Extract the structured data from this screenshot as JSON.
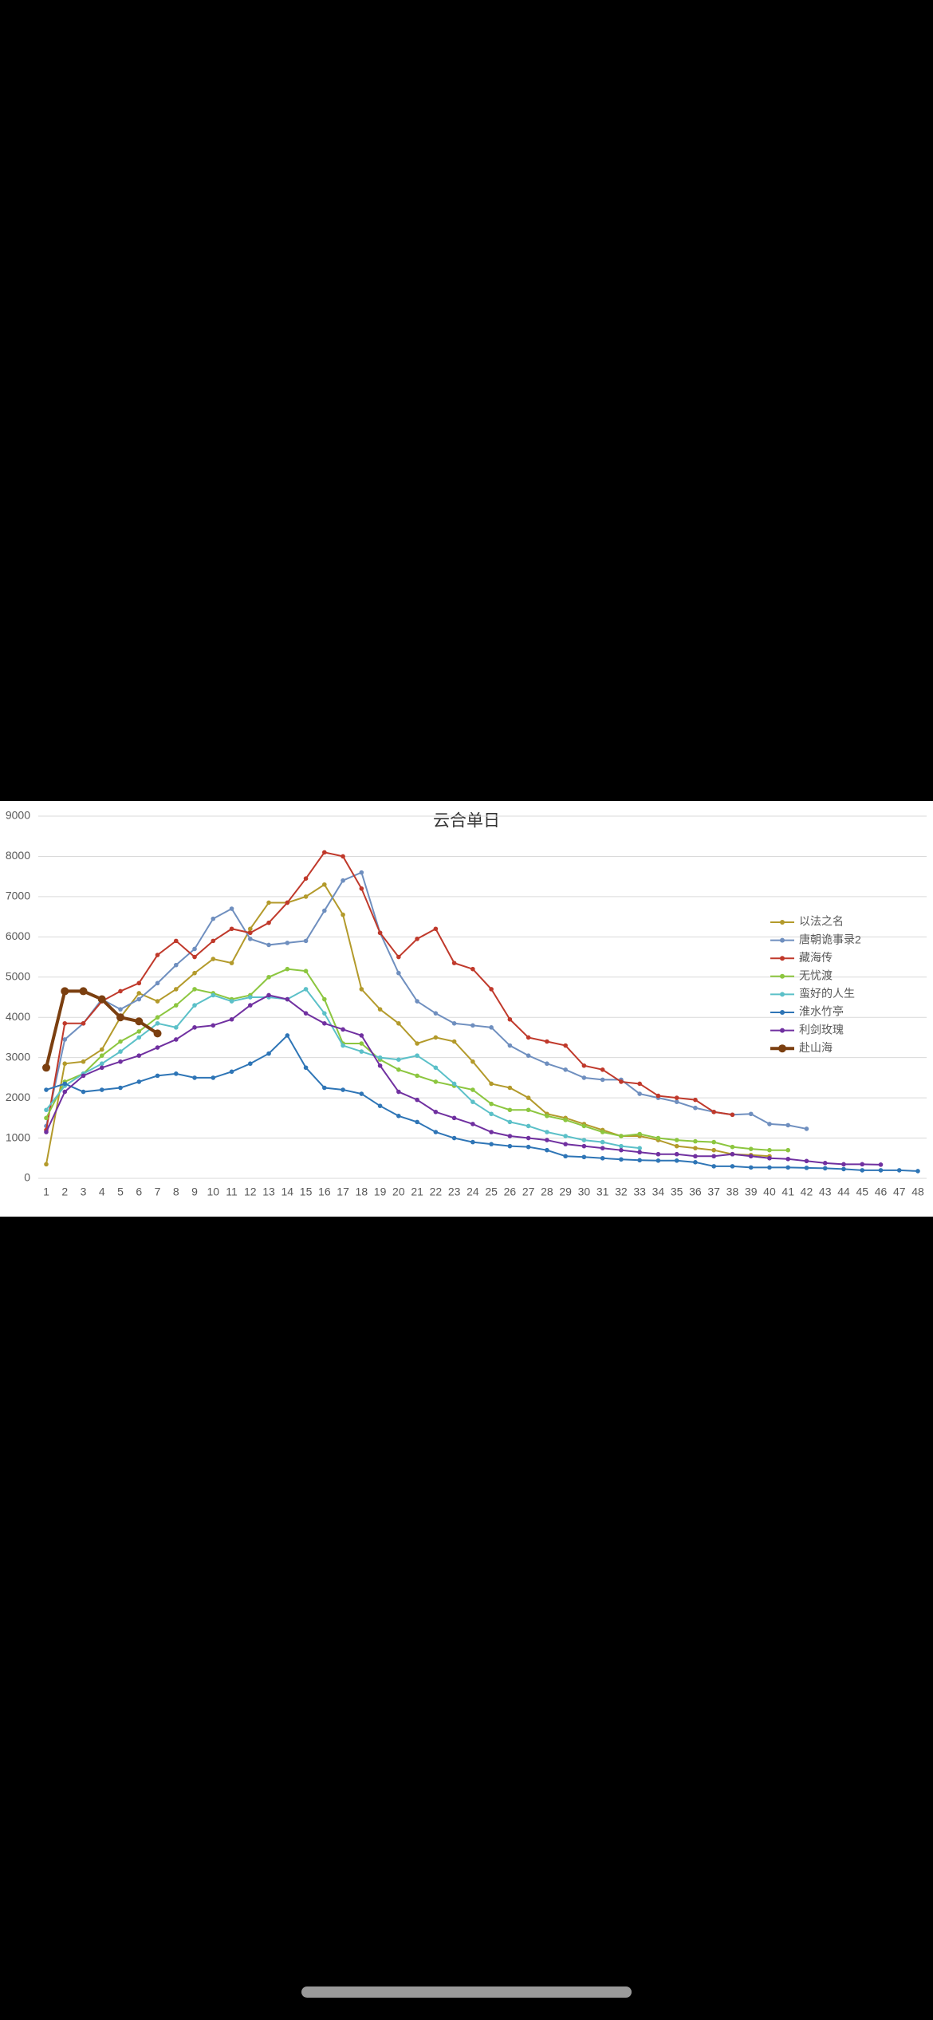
{
  "chart_data": {
    "type": "line",
    "title": "云合单日",
    "categories": [
      1,
      2,
      3,
      4,
      5,
      6,
      7,
      8,
      9,
      10,
      11,
      12,
      13,
      14,
      15,
      16,
      17,
      18,
      19,
      20,
      21,
      22,
      23,
      24,
      25,
      26,
      27,
      28,
      29,
      30,
      31,
      32,
      33,
      34,
      35,
      36,
      37,
      38,
      39,
      40,
      41,
      42,
      43,
      44,
      45,
      46,
      47,
      48
    ],
    "ylim": [
      0,
      9000
    ],
    "yticks": [
      0,
      1000,
      2000,
      3000,
      4000,
      5000,
      6000,
      7000,
      8000,
      9000
    ],
    "grid": true,
    "legend": "right",
    "series": [
      {
        "name": "以法之名",
        "color": "#b39a2b",
        "values": [
          350,
          2850,
          2900,
          3200,
          4000,
          4600,
          4400,
          4700,
          5100,
          5450,
          5350,
          6200,
          6850,
          6850,
          7000,
          7300,
          6550,
          4700,
          4200,
          3850,
          3350,
          3500,
          3400,
          2900,
          2350,
          2250,
          2000,
          1600,
          1500,
          1350,
          1200,
          1050,
          1050,
          950,
          800,
          750,
          700,
          600,
          580,
          550,
          null,
          null,
          null,
          null,
          null,
          null,
          null,
          null
        ]
      },
      {
        "name": "唐朝诡事录2",
        "color": "#6f8fbf",
        "values": [
          1300,
          3450,
          3850,
          4450,
          4200,
          4450,
          4850,
          5300,
          5700,
          6450,
          6700,
          5950,
          5800,
          5850,
          5900,
          6650,
          7400,
          7600,
          6100,
          5100,
          4400,
          4100,
          3850,
          3800,
          3750,
          3300,
          3050,
          2850,
          2700,
          2500,
          2450,
          2450,
          2100,
          2000,
          1900,
          1750,
          1650,
          1580,
          1600,
          1350,
          1320,
          1230,
          null,
          null,
          null,
          null,
          null,
          null
        ]
      },
      {
        "name": "藏海传",
        "color": "#c0392b",
        "values": [
          1200,
          3850,
          3850,
          4400,
          4650,
          4850,
          5550,
          5900,
          5500,
          5900,
          6200,
          6100,
          6350,
          6850,
          7450,
          8100,
          8000,
          7200,
          6100,
          5500,
          5950,
          6200,
          5350,
          5200,
          4700,
          3950,
          3500,
          3400,
          3300,
          2800,
          2700,
          2400,
          2350,
          2050,
          2000,
          1950,
          1650,
          1580,
          null,
          null,
          null,
          null,
          null,
          null,
          null,
          null,
          null,
          null
        ]
      },
      {
        "name": "无忧渡",
        "color": "#8cc63f",
        "values": [
          1500,
          2400,
          2600,
          3050,
          3400,
          3650,
          4000,
          4300,
          4700,
          4600,
          4450,
          4550,
          5000,
          5200,
          5150,
          4450,
          3350,
          3350,
          2950,
          2700,
          2550,
          2400,
          2300,
          2200,
          1850,
          1700,
          1700,
          1550,
          1450,
          1300,
          1150,
          1050,
          1100,
          1000,
          950,
          920,
          900,
          780,
          730,
          700,
          700,
          null,
          null,
          null,
          null,
          null,
          null,
          null
        ]
      },
      {
        "name": "蛮好的人生",
        "color": "#5bc0c8",
        "values": [
          1700,
          2300,
          2600,
          2850,
          3150,
          3500,
          3850,
          3750,
          4300,
          4550,
          4400,
          4500,
          4500,
          4450,
          4700,
          4100,
          3300,
          3150,
          3000,
          2950,
          3050,
          2750,
          2350,
          1900,
          1600,
          1400,
          1300,
          1150,
          1050,
          950,
          900,
          800,
          750,
          null,
          null,
          null,
          null,
          null,
          null,
          null,
          null,
          null,
          null,
          null,
          null,
          null,
          null,
          null
        ]
      },
      {
        "name": "淮水竹亭",
        "color": "#2e75b6",
        "values": [
          2200,
          2350,
          2150,
          2200,
          2250,
          2400,
          2550,
          2600,
          2500,
          2500,
          2650,
          2850,
          3100,
          3550,
          2750,
          2250,
          2200,
          2100,
          1800,
          1550,
          1400,
          1150,
          1000,
          900,
          850,
          800,
          780,
          700,
          550,
          530,
          500,
          470,
          450,
          440,
          440,
          400,
          300,
          300,
          270,
          270,
          270,
          260,
          250,
          230,
          200,
          200,
          200,
          180
        ]
      },
      {
        "name": "利剑玫瑰",
        "color": "#7030a0",
        "values": [
          1150,
          2150,
          2550,
          2750,
          2900,
          3050,
          3250,
          3450,
          3750,
          3800,
          3950,
          4300,
          4550,
          4450,
          4100,
          3850,
          3700,
          3550,
          2800,
          2150,
          1950,
          1650,
          1500,
          1350,
          1150,
          1050,
          1000,
          950,
          850,
          800,
          750,
          700,
          650,
          600,
          600,
          550,
          550,
          600,
          550,
          500,
          480,
          430,
          380,
          350,
          350,
          340,
          null,
          null
        ]
      },
      {
        "name": "赴山海",
        "color": "#7b3f10",
        "values": [
          2750,
          4650,
          4650,
          4450,
          4000,
          3900,
          3600,
          null,
          null,
          null,
          null,
          null,
          null,
          null,
          null,
          null,
          null,
          null,
          null,
          null,
          null,
          null,
          null,
          null,
          null,
          null,
          null,
          null,
          null,
          null,
          null,
          null,
          null,
          null,
          null,
          null,
          null,
          null,
          null,
          null,
          null,
          null,
          null,
          null,
          null,
          null,
          null,
          null
        ]
      }
    ]
  }
}
